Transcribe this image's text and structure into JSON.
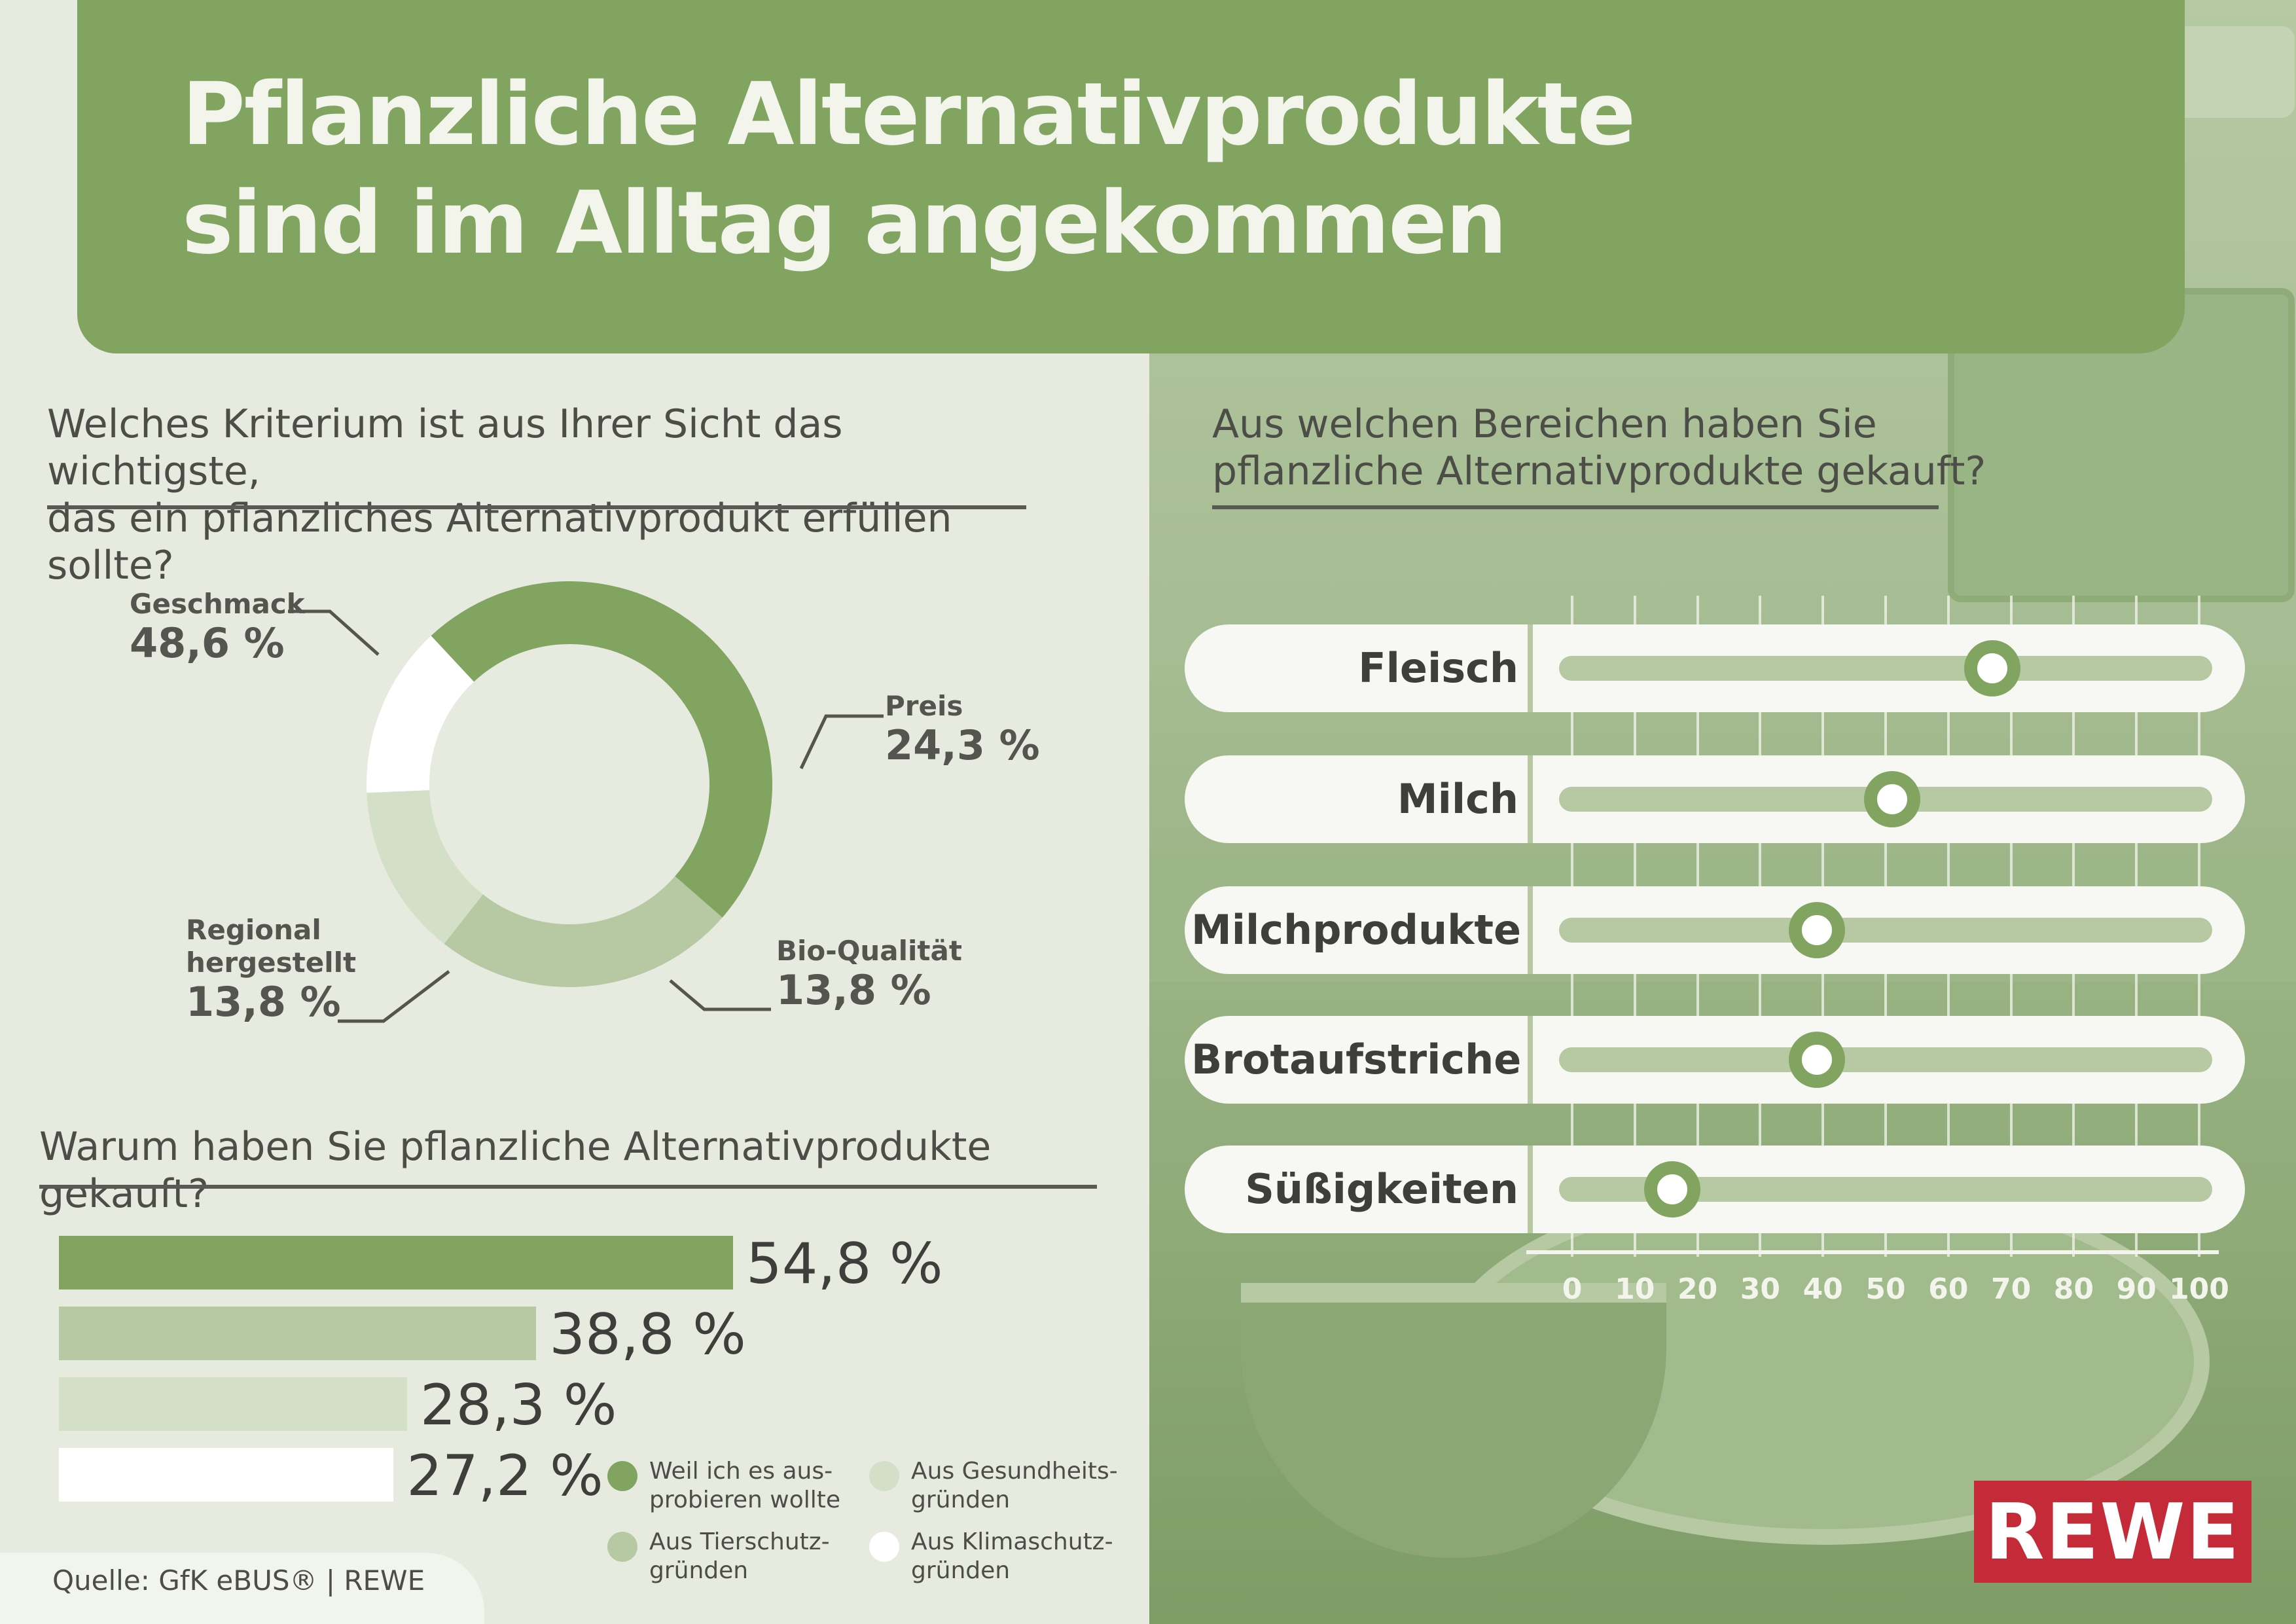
{
  "title": {
    "line1": "Pflanzliche Alternativprodukte",
    "line2": "sind im Alltag angekommen"
  },
  "colors": {
    "dark_green": "#81a461",
    "mid_green": "#b6c9a3",
    "light_green": "#d4dfc8",
    "white": "#ffffff",
    "rewe_red": "#c42a38"
  },
  "q1": {
    "line1": "Welches Kriterium ist aus Ihrer Sicht das wichtigste,",
    "line2": "das ein pflanzliches Alternativprodukt erfüllen sollte?"
  },
  "q2": {
    "line1": "Warum haben Sie pflanzliche Alternativprodukte gekauft?"
  },
  "q3": {
    "line1": "Aus welchen Bereichen haben Sie",
    "line2": "pflanzliche Alternativprodukte gekauft?"
  },
  "source": "Quelle: GfK eBUS® | REWE",
  "logo": "REWE",
  "chart_data": [
    {
      "type": "pie",
      "title": "Welches Kriterium ist aus Ihrer Sicht das wichtigste, das ein pflanzliches Alternativprodukt erfüllen sollte?",
      "slices": [
        {
          "label": "Geschmack",
          "value": 48.6,
          "display": "48,6 %",
          "color": "#81a461"
        },
        {
          "label": "Preis",
          "value": 24.3,
          "display": "24,3 %",
          "color": "#b6c9a3"
        },
        {
          "label": "Bio-Qualität",
          "value": 13.8,
          "display": "13,8 %",
          "color": "#d4dfc8"
        },
        {
          "label": "Regional hergestellt",
          "label_line1": "Regional",
          "label_line2": "hergestellt",
          "value": 13.8,
          "display": "13,8 %",
          "color": "#ffffff"
        }
      ]
    },
    {
      "type": "bar",
      "title": "Warum haben Sie pflanzliche Alternativprodukte gekauft?",
      "categories": [
        "Weil ich es ausprobieren wollte",
        "Aus Tierschutzgründen",
        "Aus Gesundheitsgründen",
        "Aus Klimaschutzgründen"
      ],
      "values": [
        54.8,
        38.8,
        28.3,
        27.2
      ],
      "display": [
        "54,8 %",
        "38,8 %",
        "28,3 %",
        "27,2 %"
      ],
      "colors": [
        "#81a461",
        "#b6c9a3",
        "#d4dfc8",
        "#ffffff"
      ],
      "legend": [
        {
          "line1": "Weil ich es aus-",
          "line2": "probieren wollte",
          "color": "#81a461"
        },
        {
          "line1": "Aus Tierschutz-",
          "line2": "gründen",
          "color": "#b6c9a3"
        },
        {
          "line1": "Aus Gesundheits-",
          "line2": "gründen",
          "color": "#d4dfc8"
        },
        {
          "line1": "Aus Klimaschutz-",
          "line2": "gründen",
          "color": "#ffffff"
        }
      ]
    },
    {
      "type": "scatter",
      "title": "Aus welchen Bereichen haben Sie pflanzliche Alternativprodukte gekauft?",
      "categories": [
        "Fleisch",
        "Milch",
        "Milchprodukte",
        "Brotaufstriche",
        "Süßigkeiten"
      ],
      "values": [
        67,
        51,
        39,
        39,
        16
      ],
      "xlim": [
        0,
        100
      ],
      "ticks": [
        "0",
        "10",
        "20",
        "30",
        "40",
        "50",
        "60",
        "70",
        "80",
        "90",
        "100"
      ],
      "grid": true
    }
  ]
}
